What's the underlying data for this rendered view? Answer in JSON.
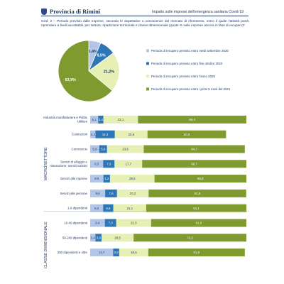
{
  "header": {
    "title": "Provincia di Rimini",
    "subtitle": "Impatto sulle imprese dell'emergenza sanitaria Covid-19",
    "caption": "Graf. 2 – Periodo previsto dalle imprese, secondo le aspettative o conoscenze del mercato di riferimento, entro il quale l'attività potrà riprendere a livelli accettabili, per settore, ripartizione territoriale e classe dimensionale (quote % sulle imprese ancora in fase di recupero)*"
  },
  "colors": {
    "series1": "#b4c6e7",
    "series2": "#2e75b6",
    "series3": "#e6f0b4",
    "series4": "#7f9a2f"
  },
  "chart_data": [
    {
      "type": "pie",
      "series": [
        {
          "name": "Periodo di recupero previsto entro metà settembre 2020",
          "value": 6.4,
          "label": "6,4%"
        },
        {
          "name": "Periodo di recupero previsto entro fine ottobre 2020",
          "value": 8.5,
          "label": "8,5%"
        },
        {
          "name": "Periodo di recupero previsto entro l'anno 2020",
          "value": 21.2,
          "label": "21,2%"
        },
        {
          "name": "Periodo di recupero previsto entro i primi 6 mesi del 2021",
          "value": 63.9,
          "label": "63,9%"
        }
      ]
    },
    {
      "type": "bar",
      "orientation": "horizontal",
      "stacked": "100%",
      "groups": [
        {
          "label": "MACROSETTORE",
          "start": 0,
          "end": 7
        },
        {
          "label": "CLASSE DIMENSIONALE",
          "start": 7,
          "end": 11
        }
      ],
      "categories": [
        "Industria manifatturiera e Public Utilities",
        "Costruzioni",
        "Commercio",
        "Servizi di alloggio e ristorazione; servizi turistici",
        "Servizi alle imprese",
        "Servizi alle persone",
        "1-9 dipendenti",
        "10-49 dipendenti",
        "50-249 dipendenti",
        "250 dipendenti e oltre"
      ],
      "category_lines": [
        [
          "Industria manifatturiera e Public",
          "Utilities"
        ],
        [
          "Costruzioni"
        ],
        [
          "Commercio"
        ],
        [
          "Servizi di alloggio e",
          "ristorazione; servizi turistici"
        ],
        [
          "Servizi alle imprese"
        ],
        [
          "Servizi alle persone"
        ],
        [
          "1-9 dipendenti"
        ],
        [
          "10-49 dipendenti"
        ],
        [
          "50-249 dipendenti"
        ],
        [
          "250 dipendenti e oltre"
        ]
      ],
      "series": [
        {
          "values": [
            5.1,
            3.4,
            5.8,
            8.3,
            8.5,
            9.6,
            8.3,
            9.4,
            3.4,
            14.7
          ],
          "labels": [
            "5,1",
            "3,4",
            "5,8",
            "8,3",
            "8,5",
            "9,6",
            "8,3",
            "9,4",
            "3,4",
            "14,7"
          ]
        },
        {
          "values": [
            3.4,
            12.4,
            5.0,
            7.3,
            4.2,
            7.6,
            6.5,
            7.3,
            3.9,
            3.9
          ],
          "labels": [
            "3,4",
            "12,4",
            "5,0",
            "7,3",
            "4,2",
            "7,6",
            "6,5",
            "7,3",
            "3,9",
            "3,9"
          ]
        },
        {
          "values": [
            22.1,
            20.9,
            23.5,
            17.7,
            28.5,
            20.2,
            21.1,
            22.3,
            20.5,
            18.6
          ],
          "labels": [
            "22,1",
            "20,9",
            "23,5",
            "17,7",
            "28,5",
            "20,2",
            "21,1",
            "22,3",
            "20,5",
            "18,6"
          ]
        },
        {
          "values": [
            69.4,
            50.3,
            64.7,
            66.7,
            58.8,
            62.5,
            64.1,
            61.0,
            72.2,
            61.8
          ],
          "labels": [
            "69,4",
            "50,3",
            "64,7",
            "66,7",
            "58,8",
            "62,5",
            "64,1",
            "61,0",
            "72,2",
            "61,8"
          ]
        }
      ],
      "xlim": [
        0,
        100
      ]
    }
  ]
}
